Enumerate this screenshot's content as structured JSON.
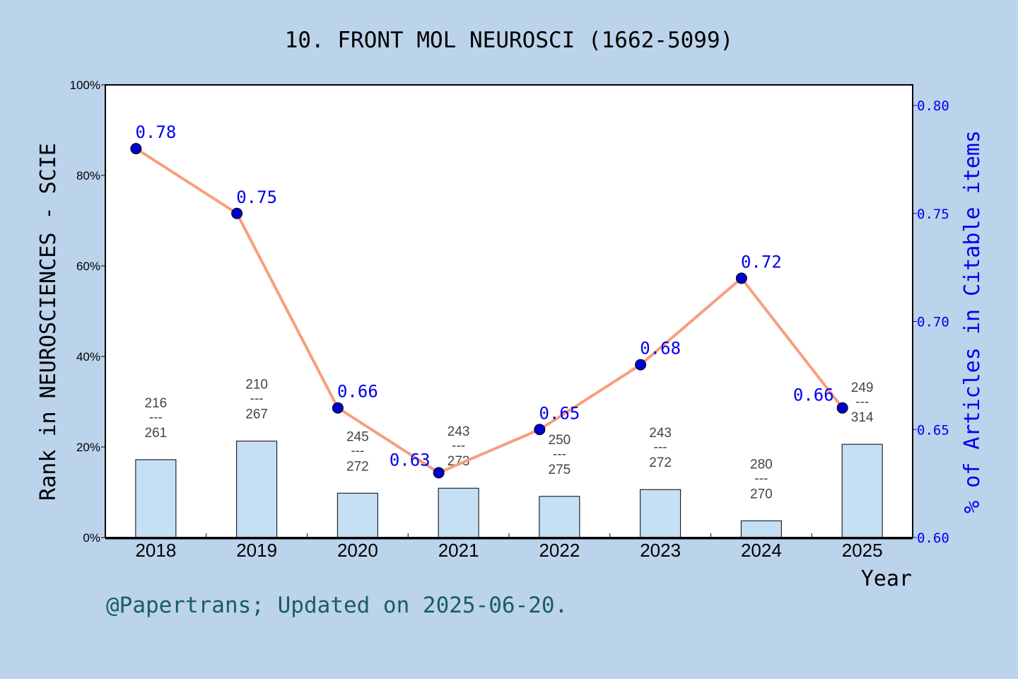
{
  "chart_data": {
    "type": "bar+line",
    "title": "10. FRONT MOL NEUROSCI (1662-5099)",
    "xlabel": "Year",
    "ylabel_left": "Rank in NEUROSCIENCES - SCIE",
    "ylabel_right": "% of Articles in Citable items",
    "categories": [
      "2018",
      "2019",
      "2020",
      "2021",
      "2022",
      "2023",
      "2024",
      "2025"
    ],
    "left_axis": {
      "ylim": [
        0,
        100
      ],
      "ticks": [
        "0%",
        "20%",
        "40%",
        "60%",
        "80%",
        "100%"
      ]
    },
    "right_axis": {
      "ylim": [
        0.6,
        0.8
      ],
      "ticks": [
        "0.60",
        "0.65",
        "0.70",
        "0.75",
        "0.80"
      ]
    },
    "bars": {
      "values_percent": [
        17.2,
        21.3,
        9.8,
        10.9,
        9.1,
        10.6,
        3.7,
        20.6
      ],
      "rank": [
        "216",
        "210",
        "245",
        "243",
        "250",
        "243",
        "280",
        "249"
      ],
      "total": [
        "261",
        "267",
        "272",
        "273",
        "275",
        "272",
        "270",
        "314"
      ],
      "separator": "---",
      "color": "#c5dff5"
    },
    "line": {
      "values": [
        0.78,
        0.75,
        0.66,
        0.63,
        0.65,
        0.68,
        0.72,
        0.66
      ],
      "labels": [
        "0.78",
        "0.75",
        "0.66",
        "0.63",
        "0.65",
        "0.68",
        "0.72",
        "0.66"
      ],
      "line_color": "#f79f7d",
      "marker_color": "#0000cc",
      "label_color": "#0000ee"
    },
    "grid": false,
    "footer": "@Papertrans; Updated on 2025-06-20."
  }
}
